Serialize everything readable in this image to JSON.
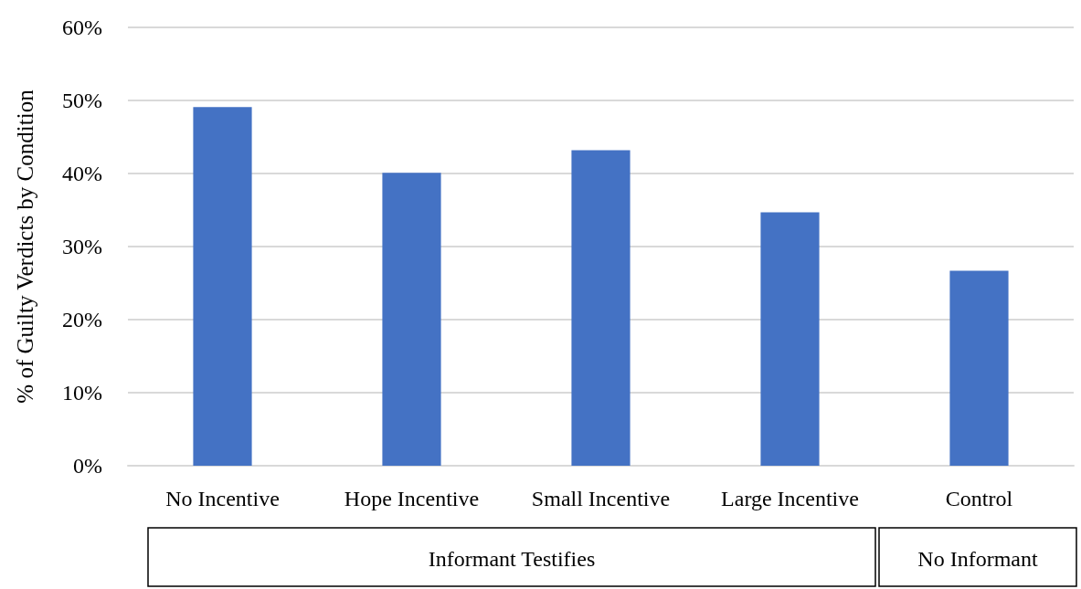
{
  "chart_data": {
    "type": "bar",
    "ylabel": "% of Guilty Verdicts by Condition",
    "categories": [
      "No Incentive",
      "Hope Incentive",
      "Small Incentive",
      "Large Incentive",
      "Control"
    ],
    "values": [
      49.1,
      40.1,
      43.2,
      34.7,
      26.7
    ],
    "color": "#4472c4",
    "ylim": [
      0,
      60
    ],
    "yticks": [
      {
        "value": 0,
        "label": "0%"
      },
      {
        "value": 10,
        "label": "10%"
      },
      {
        "value": 20,
        "label": "20%"
      },
      {
        "value": 30,
        "label": "30%"
      },
      {
        "value": 40,
        "label": "40%"
      },
      {
        "value": 50,
        "label": "50%"
      },
      {
        "value": 60,
        "label": "60%"
      }
    ],
    "grid": "y",
    "annotations": [
      "Informant Testifies",
      "No Informant"
    ]
  }
}
